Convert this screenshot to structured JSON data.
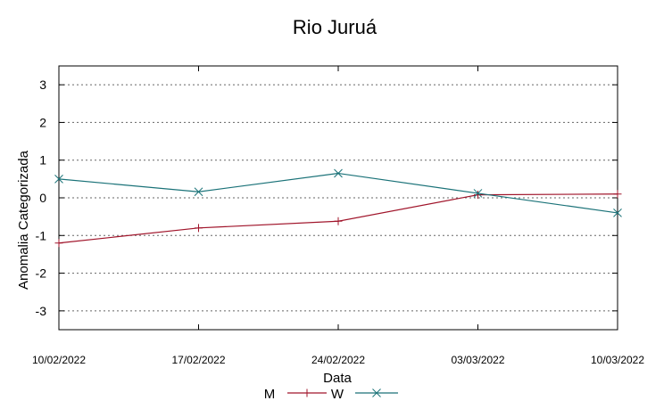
{
  "chart_data": {
    "type": "line",
    "title": "Rio Juruá",
    "xlabel": "Data",
    "ylabel": "Anomalia Categorizada",
    "categories": [
      "10/02/2022",
      "17/02/2022",
      "24/02/2022",
      "03/03/2022",
      "10/03/2022"
    ],
    "yticks": [
      "3",
      "2",
      "1",
      "0",
      "-1",
      "-2",
      "-3"
    ],
    "ylim": [
      -3.5,
      3.5
    ],
    "grid": true,
    "legend_position": "bottom",
    "series": [
      {
        "name": "M",
        "color": "#a0142a",
        "marker": "plus",
        "values": [
          -1.2,
          -0.8,
          -0.62,
          0.08,
          0.1
        ]
      },
      {
        "name": "W",
        "color": "#1a7278",
        "marker": "x",
        "values": [
          0.5,
          0.16,
          0.65,
          0.12,
          -0.4
        ]
      }
    ]
  }
}
